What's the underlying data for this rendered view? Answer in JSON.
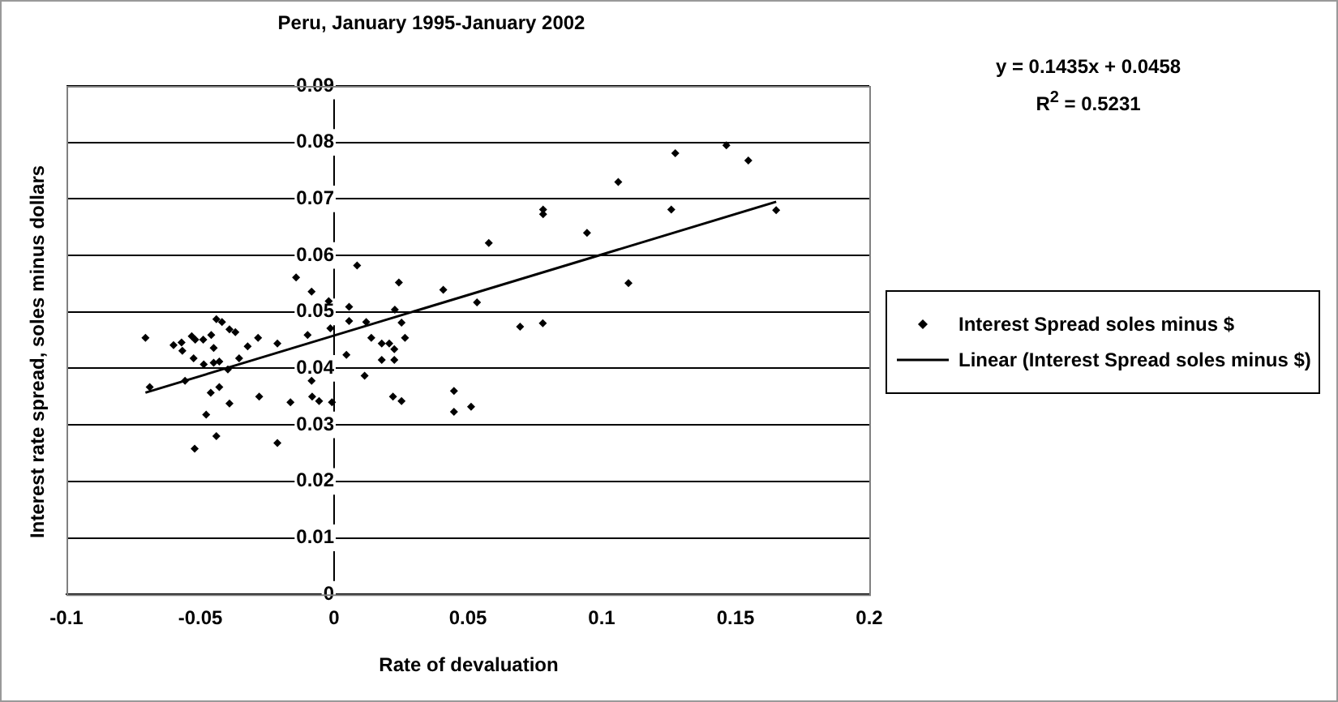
{
  "chart_data": {
    "type": "scatter",
    "title": "Peru, January 1995-January 2002",
    "xlabel": "Rate of devaluation",
    "ylabel": "Interest rate spread, soles minus dollars",
    "annotations": [
      "y = 0.1435x + 0.0458",
      "R$^{2}$ = 0.5231"
    ],
    "xlim": [
      -0.1,
      0.2
    ],
    "xticks": [
      -0.1,
      -0.05,
      0,
      0.05,
      0.1,
      0.15,
      0.2
    ],
    "ylim": [
      0,
      0.09
    ],
    "yticks": [
      0,
      0.01,
      0.02,
      0.03,
      0.04,
      0.05,
      0.06,
      0.07,
      0.08,
      0.09
    ],
    "grid": "y",
    "legend": "right",
    "marker": "diamond",
    "series": [
      {
        "name": "Interest Spread soles minus $",
        "color": "#000000",
        "x": [
          -0.0705,
          -0.0689,
          -0.06,
          -0.057,
          -0.0567,
          -0.0532,
          -0.0519,
          -0.0525,
          -0.0557,
          -0.0489,
          -0.0459,
          -0.045,
          -0.0487,
          -0.044,
          -0.0419,
          -0.045,
          -0.0429,
          -0.0391,
          -0.0369,
          -0.0397,
          -0.0355,
          -0.0461,
          -0.0429,
          -0.0391,
          -0.0478,
          -0.044,
          -0.0521,
          -0.0323,
          -0.0284,
          -0.028,
          -0.0212,
          -0.0212,
          -0.0163,
          -0.0142,
          -0.0084,
          -0.0099,
          -0.0084,
          -0.0082,
          -0.0056,
          -0.002,
          -0.0014,
          -0.0008,
          0.0046,
          0.0056,
          0.0086,
          0.0056,
          0.012,
          0.0114,
          0.0139,
          0.0178,
          0.0206,
          0.0225,
          0.0178,
          0.0225,
          0.0227,
          0.0242,
          0.0252,
          0.0265,
          0.022,
          0.0252,
          0.0408,
          0.0448,
          0.0448,
          0.0512,
          0.0534,
          0.0578,
          0.0695,
          0.078,
          0.0781,
          0.0781,
          0.0945,
          0.11,
          0.1062,
          0.126,
          0.1275,
          0.1466,
          0.1548,
          0.1652
        ],
        "values": [
          0.0454,
          0.0367,
          0.0441,
          0.0446,
          0.0431,
          0.0457,
          0.0451,
          0.0418,
          0.0378,
          0.0451,
          0.0459,
          0.0436,
          0.0407,
          0.0487,
          0.0482,
          0.041,
          0.0412,
          0.0469,
          0.0464,
          0.0398,
          0.0418,
          0.0357,
          0.0367,
          0.0338,
          0.0318,
          0.028,
          0.0258,
          0.0439,
          0.0454,
          0.035,
          0.0444,
          0.0268,
          0.034,
          0.0561,
          0.0536,
          0.0459,
          0.0378,
          0.035,
          0.0342,
          0.0519,
          0.0471,
          0.034,
          0.0424,
          0.0509,
          0.0582,
          0.0484,
          0.0482,
          0.0387,
          0.0454,
          0.0444,
          0.0444,
          0.0434,
          0.0415,
          0.0415,
          0.0504,
          0.0552,
          0.0481,
          0.0454,
          0.035,
          0.0342,
          0.0539,
          0.036,
          0.0323,
          0.0332,
          0.0517,
          0.0622,
          0.0474,
          0.048,
          0.0681,
          0.0673,
          0.064,
          0.0551,
          0.073,
          0.0681,
          0.0781,
          0.0795,
          0.0768,
          0.068
        ]
      },
      {
        "name": "Linear (Interest Spread soles minus $)",
        "type": "line",
        "marker": "none",
        "color": "#000000",
        "x": [
          -0.0705,
          0.1652
        ],
        "values": [
          0.0357,
          0.0695
        ]
      }
    ]
  }
}
